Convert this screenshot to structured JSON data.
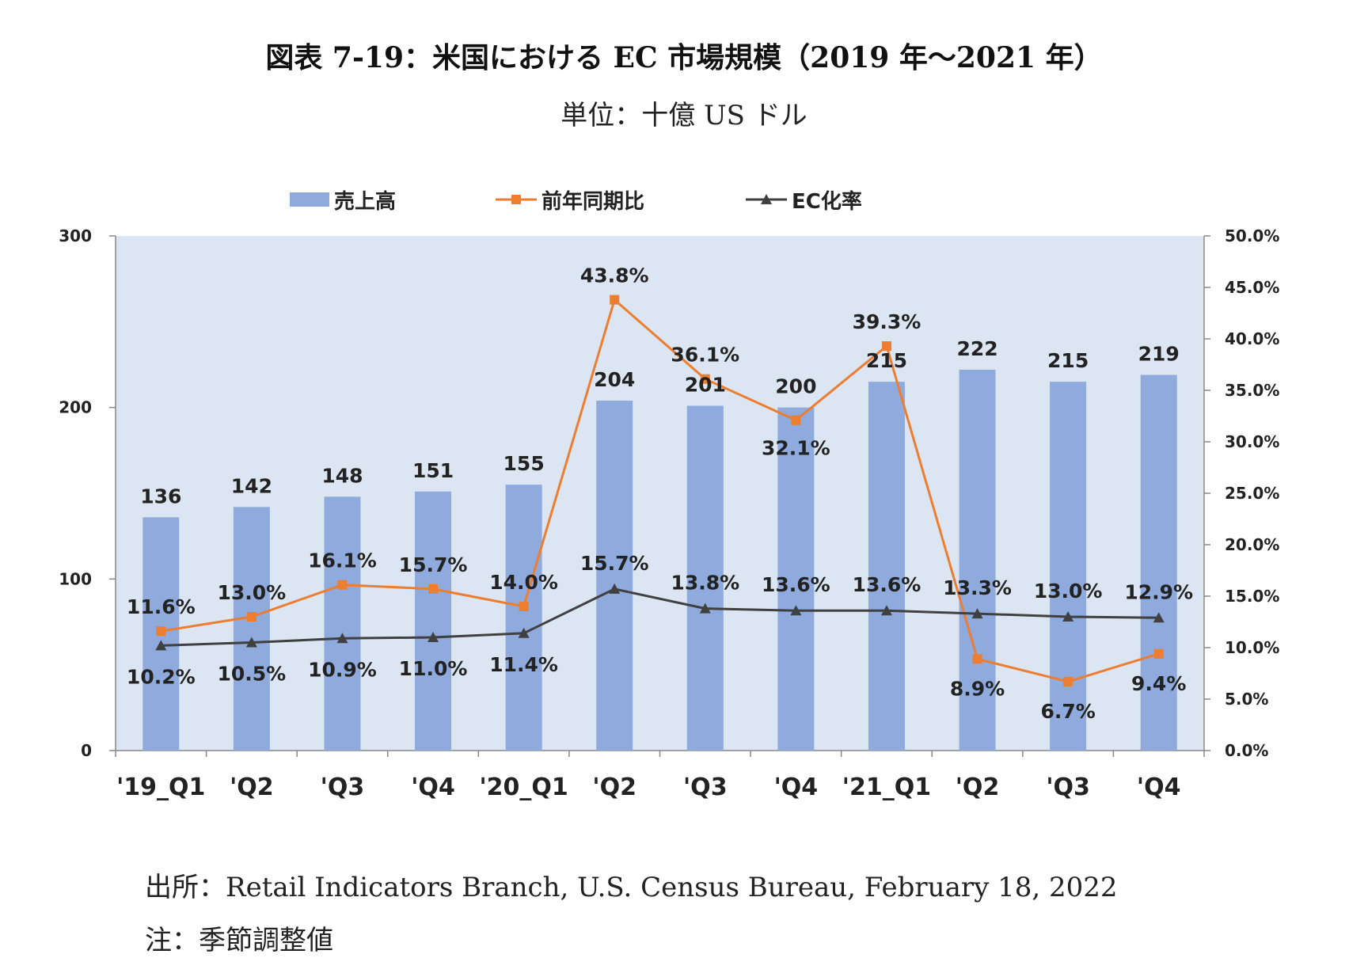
{
  "title": "図表 7-19：米国における EC 市場規模（2019 年～2021 年）",
  "unit_label": "単位：十億 US ドル",
  "legend": {
    "sales": "売上高",
    "yoy": "前年同期比",
    "ec_rate": "EC化率"
  },
  "colors": {
    "bar": "#8faadc",
    "yoy_line": "#ed7d31",
    "ec_line": "#404040",
    "plot_bg": "#dce6f2"
  },
  "chart_data": {
    "type": "bar+line",
    "categories": [
      "'19_Q1",
      "'Q2",
      "'Q3",
      "'Q4",
      "'20_Q1",
      "'Q2",
      "'Q3",
      "'Q4",
      "'21_Q1",
      "'Q2",
      "'Q3",
      "'Q4"
    ],
    "series": [
      {
        "name": "売上高",
        "type": "bar",
        "axis": "left",
        "values": [
          136,
          142,
          148,
          151,
          155,
          204,
          201,
          200,
          215,
          222,
          215,
          219
        ],
        "labels": [
          "136",
          "142",
          "148",
          "151",
          "155",
          "204",
          "201",
          "200",
          "215",
          "222",
          "215",
          "219"
        ]
      },
      {
        "name": "前年同期比",
        "type": "line",
        "axis": "right",
        "values": [
          11.6,
          13.0,
          16.1,
          15.7,
          14.0,
          43.8,
          36.1,
          32.1,
          39.3,
          8.9,
          6.7,
          9.4
        ],
        "labels": [
          "11.6%",
          "13.0%",
          "16.1%",
          "15.7%",
          "14.0%",
          "43.8%",
          "36.1%",
          "32.1%",
          "39.3%",
          "8.9%",
          "6.7%",
          "9.4%"
        ]
      },
      {
        "name": "EC化率",
        "type": "line",
        "axis": "right",
        "values": [
          10.2,
          10.5,
          10.9,
          11.0,
          11.4,
          15.7,
          13.8,
          13.6,
          13.6,
          13.3,
          13.0,
          12.9
        ],
        "labels": [
          "10.2%",
          "10.5%",
          "10.9%",
          "11.0%",
          "11.4%",
          "15.7%",
          "13.8%",
          "13.6%",
          "13.6%",
          "13.3%",
          "13.0%",
          "12.9%"
        ]
      }
    ],
    "y_left": {
      "min": 0,
      "max": 300,
      "ticks": [
        "0",
        "100",
        "200",
        "300"
      ]
    },
    "y_right": {
      "min": 0,
      "max": 50,
      "ticks": [
        "0.0%",
        "5.0%",
        "10.0%",
        "15.0%",
        "20.0%",
        "25.0%",
        "30.0%",
        "35.0%",
        "40.0%",
        "45.0%",
        "50.0%"
      ]
    },
    "legend_position": "top"
  },
  "footnotes": {
    "source": "出所：Retail Indicators Branch, U.S. Census Bureau, February 18, 2022",
    "note": "注：季節調整値"
  }
}
